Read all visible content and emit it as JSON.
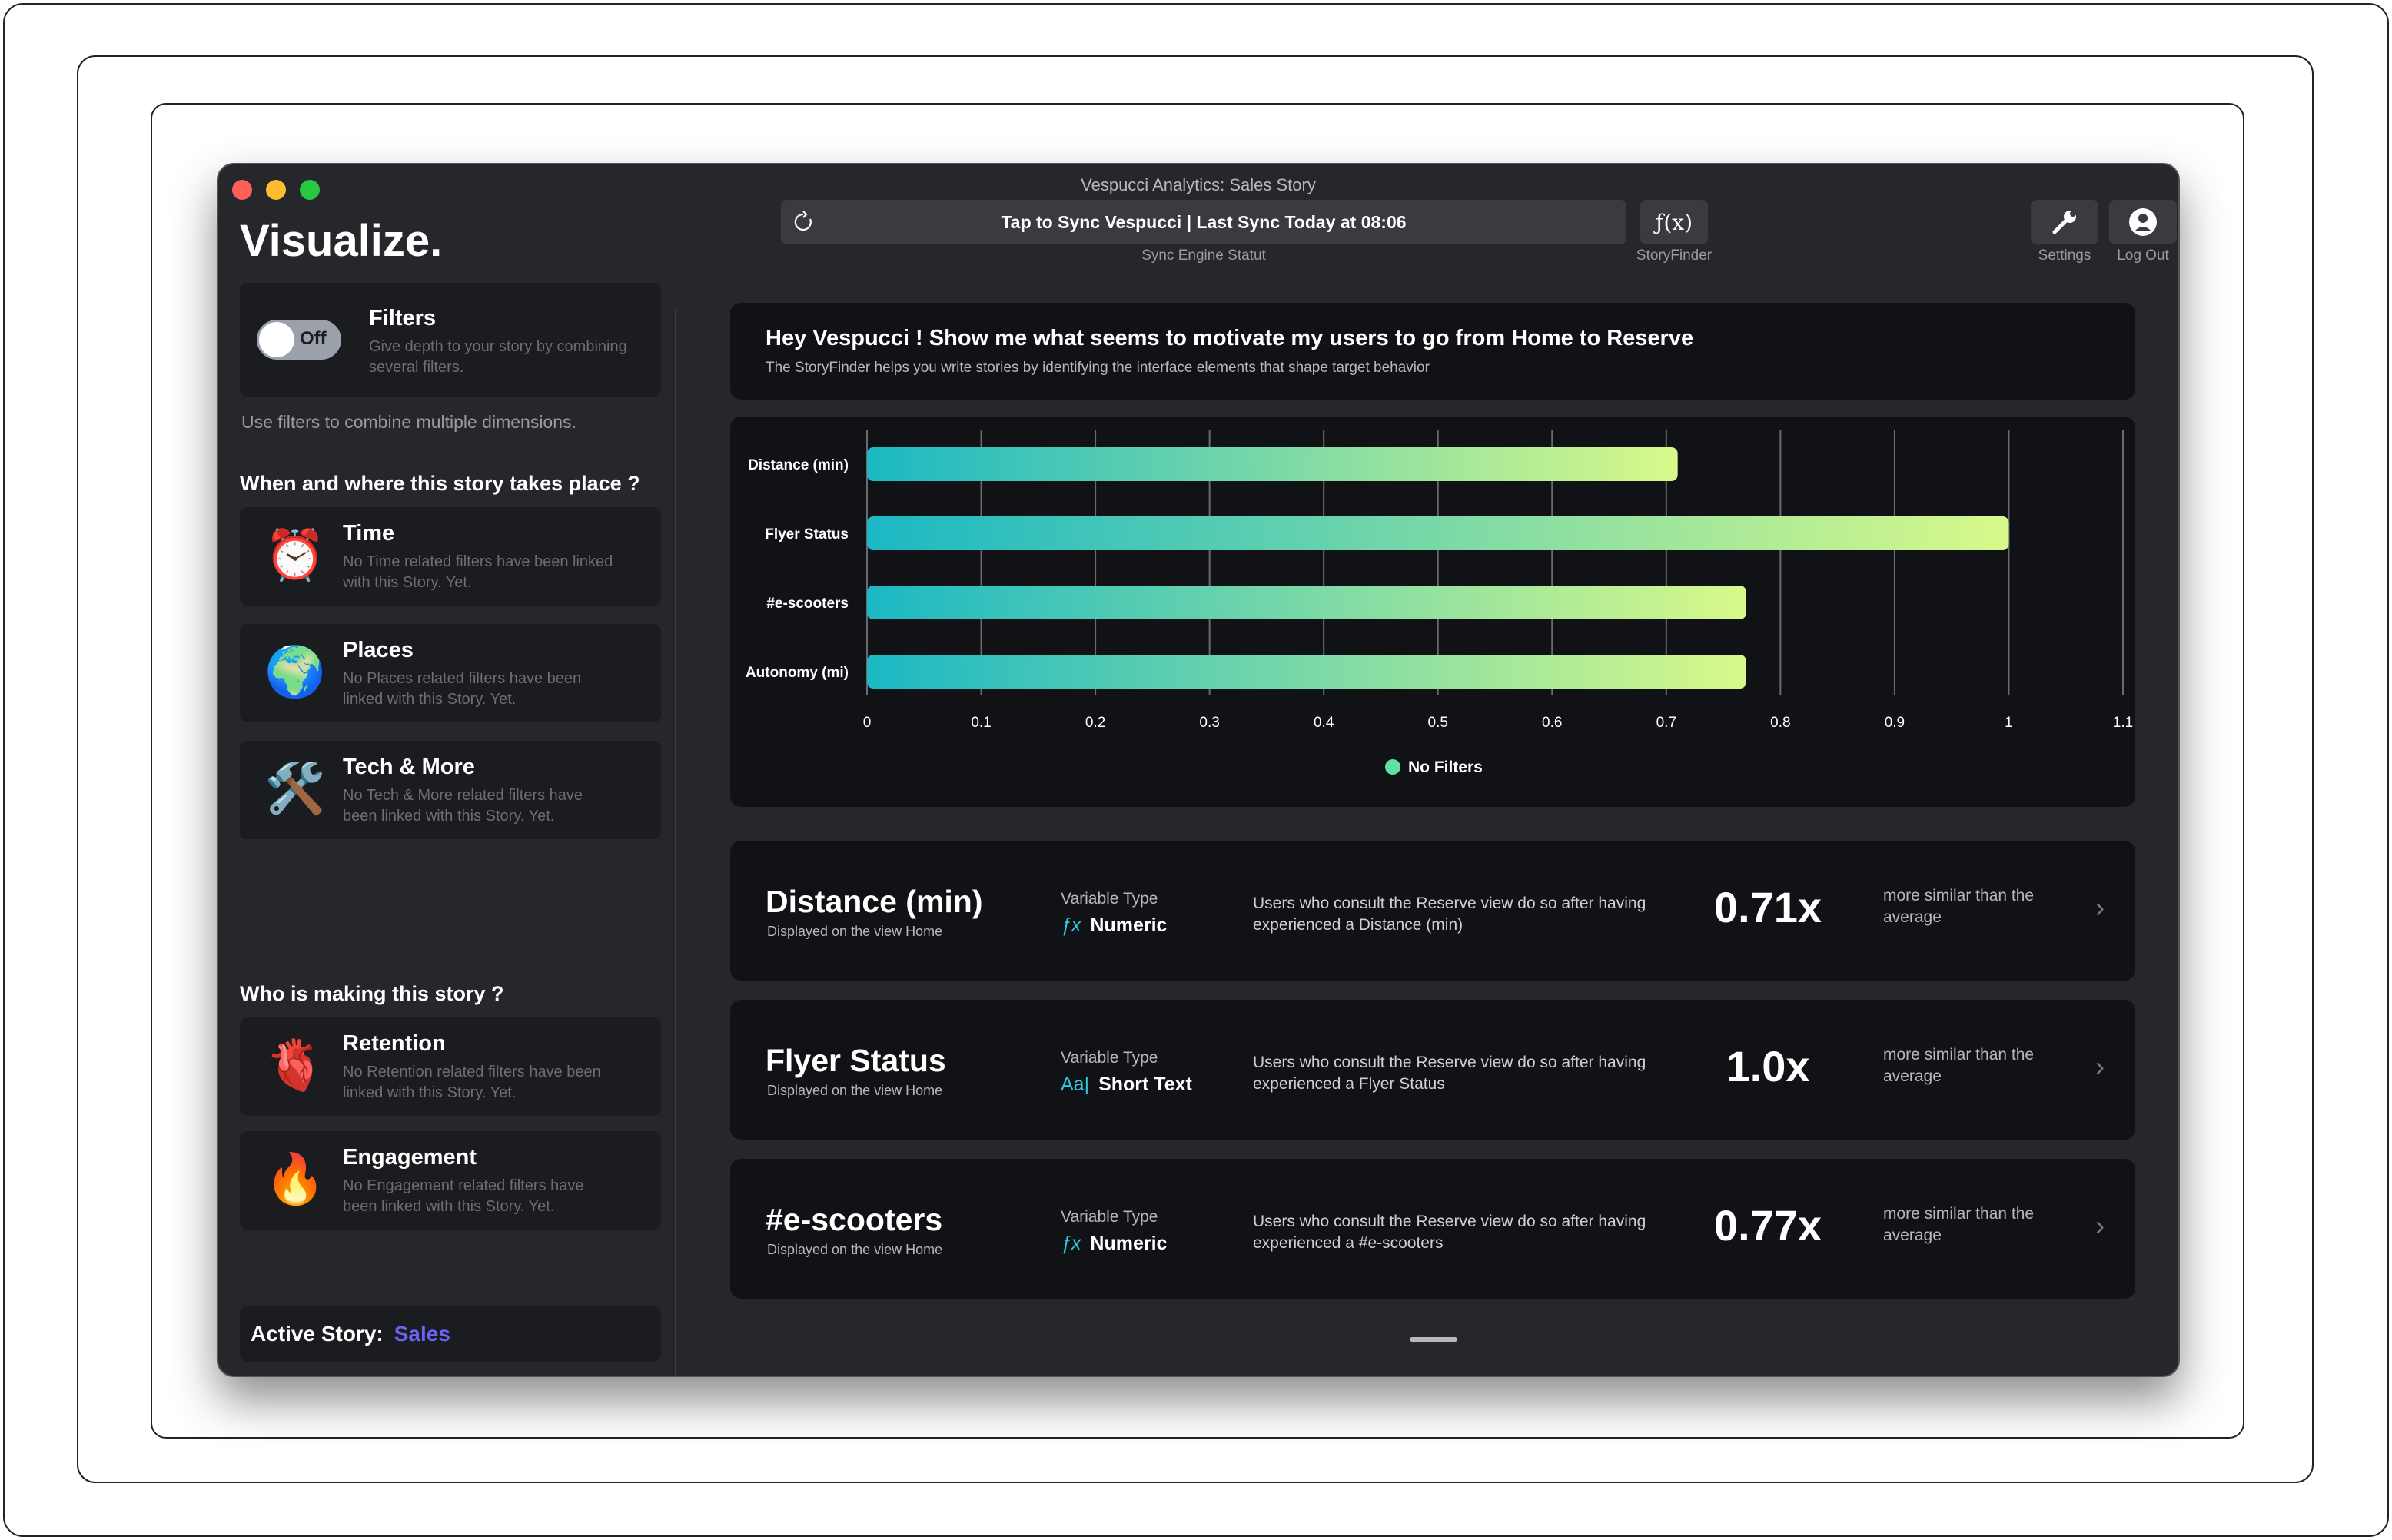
{
  "window": {
    "title": "Vespucci Analytics: Sales Story"
  },
  "toolbar": {
    "sync_label": "Tap to Sync Vespucci | Last Sync Today at 08:06",
    "sync_caption": "Sync Engine Statut",
    "storyfinder_icon": "ƒ(x)",
    "storyfinder_caption": "StoryFinder",
    "settings_caption": "Settings",
    "logout_caption": "Log Out"
  },
  "sidebar": {
    "brand": "Visualize.",
    "filters": {
      "title": "Filters",
      "desc": "Give depth to your story by combining several filters.",
      "toggle": "Off"
    },
    "filters_hint": "Use filters to combine multiple dimensions.",
    "where_heading": "When and where this story takes place ?",
    "where_items": [
      {
        "emoji": "⏰",
        "title": "Time",
        "desc": "No Time related filters have been linked with this Story. Yet."
      },
      {
        "emoji": "🌍",
        "title": "Places",
        "desc": "No Places related filters have been linked with this Story. Yet."
      },
      {
        "emoji": "🛠️",
        "title": "Tech & More",
        "desc": "No Tech & More related filters have been linked with this Story. Yet."
      }
    ],
    "who_heading": "Who is making this story ?",
    "who_items": [
      {
        "emoji": "🫀",
        "title": "Retention",
        "desc": "No Retention related filters have been linked with this Story. Yet."
      },
      {
        "emoji": "🔥",
        "title": "Engagement",
        "desc": "No Engagement related filters have been linked with this Story. Yet."
      }
    ],
    "active_story_label": "Active Story:",
    "active_story_value": "Sales"
  },
  "main": {
    "question": {
      "title": "Hey Vespucci ! Show me what seems to motivate my users to go from Home to Reserve",
      "subtitle": "The StoryFinder helps you write stories by identifying the interface elements that shape target behavior"
    },
    "results": [
      {
        "name": "Distance (min)",
        "displayed": "Displayed on the view Home",
        "vt_label": "Variable Type",
        "vt_icon": "ƒx",
        "vt": "Numeric",
        "desc": "Users who consult the Reserve view do so after having experienced a Distance (min)",
        "ratio": "0.71x",
        "more": "more similar than the average"
      },
      {
        "name": "Flyer Status",
        "displayed": "Displayed on the view Home",
        "vt_label": "Variable Type",
        "vt_icon": "Aa|",
        "vt": "Short Text",
        "desc": "Users who consult the Reserve view do so after having experienced a Flyer Status",
        "ratio": "1.0x",
        "more": "more similar than the average"
      },
      {
        "name": "#e-scooters",
        "displayed": "Displayed on the view Home",
        "vt_label": "Variable Type",
        "vt_icon": "ƒx",
        "vt": "Numeric",
        "desc": "Users who consult the Reserve view do so after having experienced a #e-scooters",
        "ratio": "0.77x",
        "more": "more similar than the average"
      }
    ]
  },
  "chart_data": {
    "type": "bar",
    "orientation": "horizontal",
    "categories": [
      "Distance (min)",
      "Flyer Status",
      "#e-scooters",
      "Autonomy (mi)"
    ],
    "series": [
      {
        "name": "No Filters",
        "values": [
          0.71,
          1.0,
          0.77,
          0.77
        ]
      }
    ],
    "xlim": [
      0,
      1.1
    ],
    "xticks": [
      "0",
      "0.1",
      "0.2",
      "0.3",
      "0.4",
      "0.5",
      "0.6",
      "0.7",
      "0.8",
      "0.9",
      "1",
      "1.1"
    ],
    "grid": true,
    "legend": "bottom-center",
    "colors": {
      "gradient_start": "#1bb8c4",
      "gradient_end": "#d8f98a",
      "legend_dot": "#5fe0a8"
    }
  }
}
